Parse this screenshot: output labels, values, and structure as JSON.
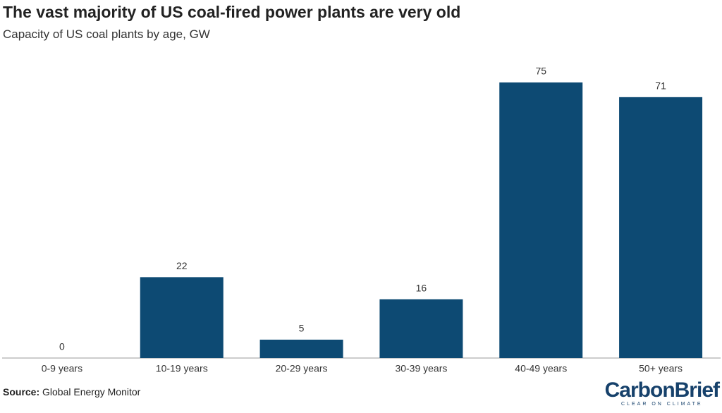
{
  "chart_data": {
    "type": "bar",
    "title": "The vast majority of US coal-fired power plants are very old",
    "subtitle": "Capacity of US coal plants by age, GW",
    "categories": [
      "0-9 years",
      "10-19 years",
      "20-29 years",
      "30-39 years",
      "40-49 years",
      "50+ years"
    ],
    "values": [
      0,
      22,
      5,
      16,
      75,
      71
    ],
    "color": "#0d4a73"
  },
  "footer": {
    "source_label": "Source:",
    "source": "Global Energy Monitor"
  },
  "logo": {
    "name": "CarbonBrief",
    "tagline": "CLEAR ON CLIMATE"
  }
}
